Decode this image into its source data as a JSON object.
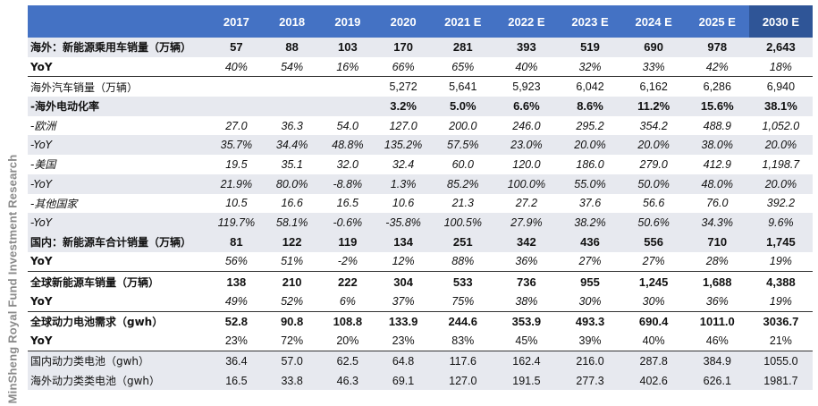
{
  "watermark": "MinSheng Royal Fund Investment Research",
  "table": {
    "header": [
      "",
      "2017",
      "2018",
      "2019",
      "2020",
      "2021 E",
      "2022 E",
      "2023 E",
      "2024 E",
      "2025 E",
      "2030 E"
    ],
    "rows": [
      {
        "label": "海外：新能源乘用车销量（万辆）",
        "values": [
          "57",
          "88",
          "103",
          "170",
          "281",
          "393",
          "519",
          "690",
          "978",
          "2,643"
        ]
      },
      {
        "label": "YoY",
        "values": [
          "40%",
          "54%",
          "16%",
          "66%",
          "65%",
          "40%",
          "32%",
          "33%",
          "42%",
          "18%"
        ]
      },
      {
        "label": "海外汽车销量（万辆）",
        "values": [
          "",
          "",
          "",
          "5,272",
          "5,641",
          "5,923",
          "6,042",
          "6,162",
          "6,286",
          "6,940"
        ]
      },
      {
        "label": "-海外电动化率",
        "values": [
          "",
          "",
          "",
          "3.2%",
          "5.0%",
          "6.6%",
          "8.6%",
          "11.2%",
          "15.6%",
          "38.1%"
        ]
      },
      {
        "label": "-欧洲",
        "values": [
          "27.0",
          "36.3",
          "54.0",
          "127.0",
          "200.0",
          "246.0",
          "295.2",
          "354.2",
          "488.9",
          "1,052.0"
        ]
      },
      {
        "label": "-YoY",
        "values": [
          "35.7%",
          "34.4%",
          "48.8%",
          "135.2%",
          "57.5%",
          "23.0%",
          "20.0%",
          "20.0%",
          "38.0%",
          "20.0%"
        ]
      },
      {
        "label": "-美国",
        "values": [
          "19.5",
          "35.1",
          "32.0",
          "32.4",
          "60.0",
          "120.0",
          "186.0",
          "279.0",
          "412.9",
          "1,198.7"
        ]
      },
      {
        "label": "-YoY",
        "values": [
          "21.9%",
          "80.0%",
          "-8.8%",
          "1.3%",
          "85.2%",
          "100.0%",
          "55.0%",
          "50.0%",
          "48.0%",
          "20.0%"
        ]
      },
      {
        "label": "-其他国家",
        "values": [
          "10.5",
          "16.6",
          "16.5",
          "10.6",
          "21.3",
          "27.2",
          "37.6",
          "56.6",
          "76.0",
          "392.2"
        ]
      },
      {
        "label": "-YoY",
        "values": [
          "119.7%",
          "58.1%",
          "-0.6%",
          "-35.8%",
          "100.5%",
          "27.9%",
          "38.2%",
          "50.6%",
          "34.3%",
          "9.6%"
        ]
      },
      {
        "label": "国内：新能源车合计销量（万辆）",
        "values": [
          "81",
          "122",
          "119",
          "134",
          "251",
          "342",
          "436",
          "556",
          "710",
          "1,745"
        ]
      },
      {
        "label": "YoY",
        "values": [
          "56%",
          "51%",
          "-2%",
          "12%",
          "88%",
          "36%",
          "27%",
          "27%",
          "28%",
          "19%"
        ]
      },
      {
        "label": "全球新能源车销量（万辆）",
        "values": [
          "138",
          "210",
          "222",
          "304",
          "533",
          "736",
          "955",
          "1,245",
          "1,688",
          "4,388"
        ]
      },
      {
        "label": "YoY",
        "values": [
          "49%",
          "52%",
          "6%",
          "37%",
          "75%",
          "38%",
          "30%",
          "30%",
          "36%",
          "19%"
        ]
      },
      {
        "label": "全球动力电池需求（gwh）",
        "values": [
          "52.8",
          "90.8",
          "108.8",
          "133.9",
          "244.6",
          "353.9",
          "493.3",
          "690.4",
          "1011.0",
          "3036.7"
        ]
      },
      {
        "label": "YoY",
        "values": [
          "23%",
          "72%",
          "20%",
          "23%",
          "83%",
          "45%",
          "39%",
          "40%",
          "46%",
          "21%"
        ]
      },
      {
        "label": "国内动力类电池（gwh）",
        "values": [
          "36.4",
          "57.0",
          "62.5",
          "64.8",
          "117.6",
          "162.4",
          "216.0",
          "287.8",
          "384.9",
          "1055.0"
        ]
      },
      {
        "label": "海外动力类类电池（gwh）",
        "values": [
          "16.5",
          "33.8",
          "46.3",
          "69.1",
          "127.0",
          "191.5",
          "277.3",
          "402.6",
          "626.1",
          "1981.7"
        ]
      }
    ]
  }
}
